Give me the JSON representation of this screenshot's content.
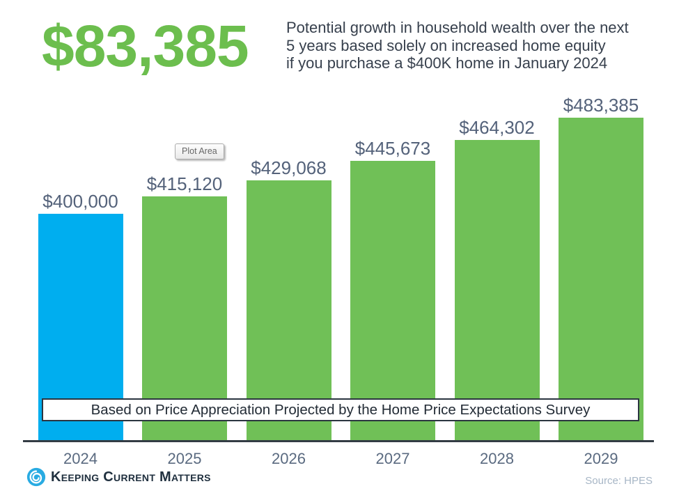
{
  "header": {
    "highlight_value": "$83,385",
    "subtitle_lines": [
      "Potential growth in household wealth over the next",
      "5 years based solely on increased home equity",
      "if you purchase a $400K home in January 2024"
    ]
  },
  "chart_data": {
    "type": "bar",
    "title": "",
    "categories": [
      "2024",
      "2025",
      "2026",
      "2027",
      "2028",
      "2029"
    ],
    "values": [
      400000,
      415120,
      429068,
      445673,
      464302,
      483385
    ],
    "labels": [
      "$400,000",
      "$415,120",
      "$429,068",
      "$445,673",
      "$464,302",
      "$483,385"
    ],
    "bar_colors": [
      "#00AEEF",
      "#70C057",
      "#70C057",
      "#70C057",
      "#70C057",
      "#70C057"
    ],
    "xlabel": "",
    "ylabel": "",
    "ylim": [
      203000,
      505000
    ],
    "grid": false,
    "legend": false,
    "annotation": "Plot Area",
    "banner": "Based on Price Appreciation Projected by the Home Price Expectations Survey"
  },
  "footer": {
    "logo_text": "Keeping Current Matters",
    "source": "Source: HPES"
  },
  "colors": {
    "accent_green": "#6CBE4E",
    "accent_blue": "#00AEEF",
    "bar_green": "#70C057",
    "label_slate": "#54627A",
    "title_dark": "#37404D",
    "source_gray": "#A7B6C6",
    "logo_blue": "#29ABE2",
    "logo_navy": "#20303F"
  }
}
